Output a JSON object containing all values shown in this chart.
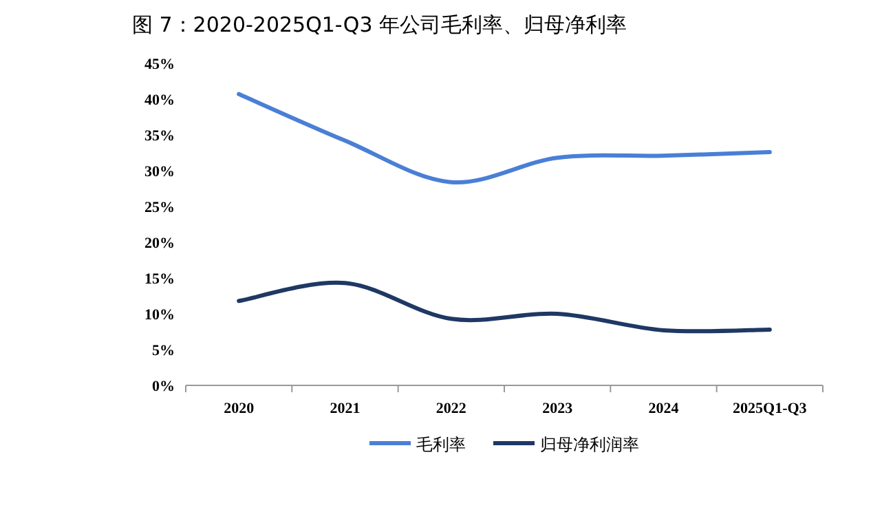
{
  "chart_data": {
    "type": "line",
    "title": "图 7：2020-2025Q1-Q3 年公司毛利率、归母净利率",
    "categories": [
      "2020",
      "2021",
      "2022",
      "2023",
      "2024",
      "2025Q1-Q3"
    ],
    "series": [
      {
        "name": "毛利率",
        "color": "#4a7fd6",
        "values": [
          40.7,
          34.2,
          28.4,
          31.8,
          32.1,
          32.6
        ]
      },
      {
        "name": "归母净利润率",
        "color": "#1f3864",
        "values": [
          11.8,
          14.3,
          9.3,
          10.0,
          7.7,
          7.8
        ]
      }
    ],
    "ylim": [
      0,
      45
    ],
    "yticks": [
      {
        "value": 0,
        "label": "0%"
      },
      {
        "value": 5,
        "label": "5%"
      },
      {
        "value": 10,
        "label": "10%"
      },
      {
        "value": 15,
        "label": "15%"
      },
      {
        "value": 20,
        "label": "20%"
      },
      {
        "value": 25,
        "label": "25%"
      },
      {
        "value": 30,
        "label": "30%"
      },
      {
        "value": 35,
        "label": "35%"
      },
      {
        "value": 40,
        "label": "40%"
      },
      {
        "value": 45,
        "label": "45%"
      }
    ],
    "legend": "bottom"
  }
}
